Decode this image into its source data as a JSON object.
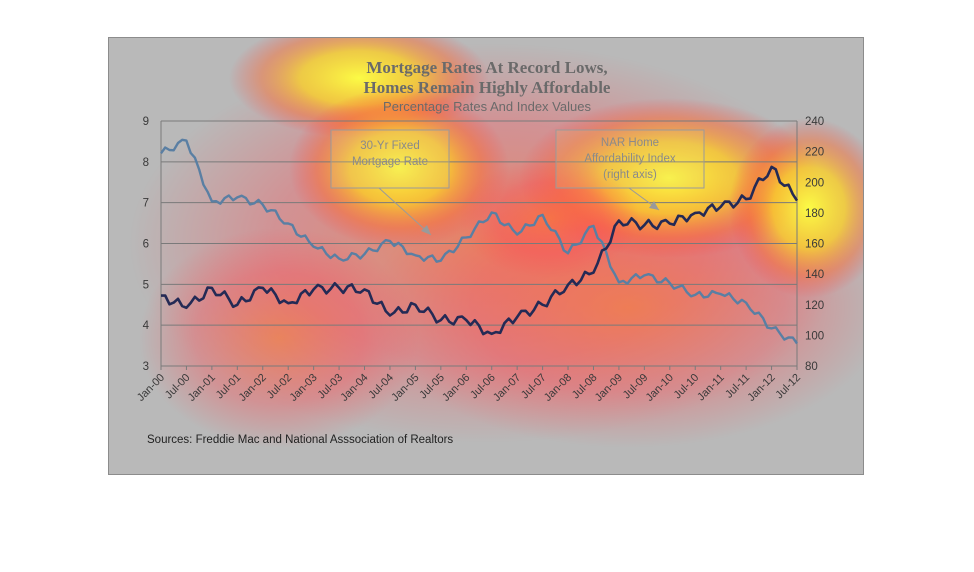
{
  "chart_data": {
    "type": "line",
    "title": [
      "Mortgage Rates At Record Lows,",
      "Homes Remain Highly Affordable"
    ],
    "subtitle": "Percentage Rates And Index Values",
    "x": [
      "Jan-00",
      "Jul-00",
      "Jan-01",
      "Jul-01",
      "Jan-02",
      "Jul-02",
      "Jan-03",
      "Jul-03",
      "Jan-04",
      "Jul-04",
      "Jan-05",
      "Jul-05",
      "Jan-06",
      "Jul-06",
      "Jan-07",
      "Jul-07",
      "Jan-08",
      "Jul-08",
      "Jan-09",
      "Jul-09",
      "Jan-10",
      "Jul-10",
      "Jan-11",
      "Jul-11",
      "Jan-12",
      "Jul-12"
    ],
    "left_axis": {
      "ylim": [
        3,
        9
      ],
      "ticks": [
        "3",
        "4",
        "5",
        "6",
        "7",
        "8",
        "9"
      ]
    },
    "right_axis": {
      "ylim": [
        80,
        240
      ],
      "ticks": [
        "80",
        "100",
        "120",
        "140",
        "160",
        "180",
        "200",
        "220",
        "240"
      ]
    },
    "series": [
      {
        "name": "30-Yr Fixed Mortgage Rate",
        "axis": "left",
        "color": "#5a7fa3",
        "values": [
          8.21,
          8.52,
          7.03,
          7.13,
          6.95,
          6.49,
          5.92,
          5.63,
          5.74,
          6.06,
          5.71,
          5.58,
          6.15,
          6.76,
          6.22,
          6.7,
          5.76,
          6.43,
          5.05,
          5.22,
          5.03,
          4.74,
          4.76,
          4.55,
          3.92,
          3.55
        ]
      },
      {
        "name": "NAR Home Affordability Index (right axis)",
        "axis": "right",
        "color": "#242a55",
        "values": [
          126,
          118,
          131,
          120,
          131,
          121,
          130,
          131,
          130,
          113,
          120,
          110,
          110,
          101,
          112,
          120,
          133,
          141,
          175,
          172,
          173,
          180,
          184,
          189,
          210,
          188
        ]
      }
    ],
    "annotations": [
      {
        "text": [
          "30-Yr Fixed",
          "Mortgage Rate"
        ]
      },
      {
        "text": [
          "NAR Home",
          "Affordability Index",
          "(right axis)"
        ]
      }
    ],
    "source": "Sources:  Freddie Mac and National Asssociation of Realtors",
    "grid": "horizontal",
    "legend": "none"
  }
}
